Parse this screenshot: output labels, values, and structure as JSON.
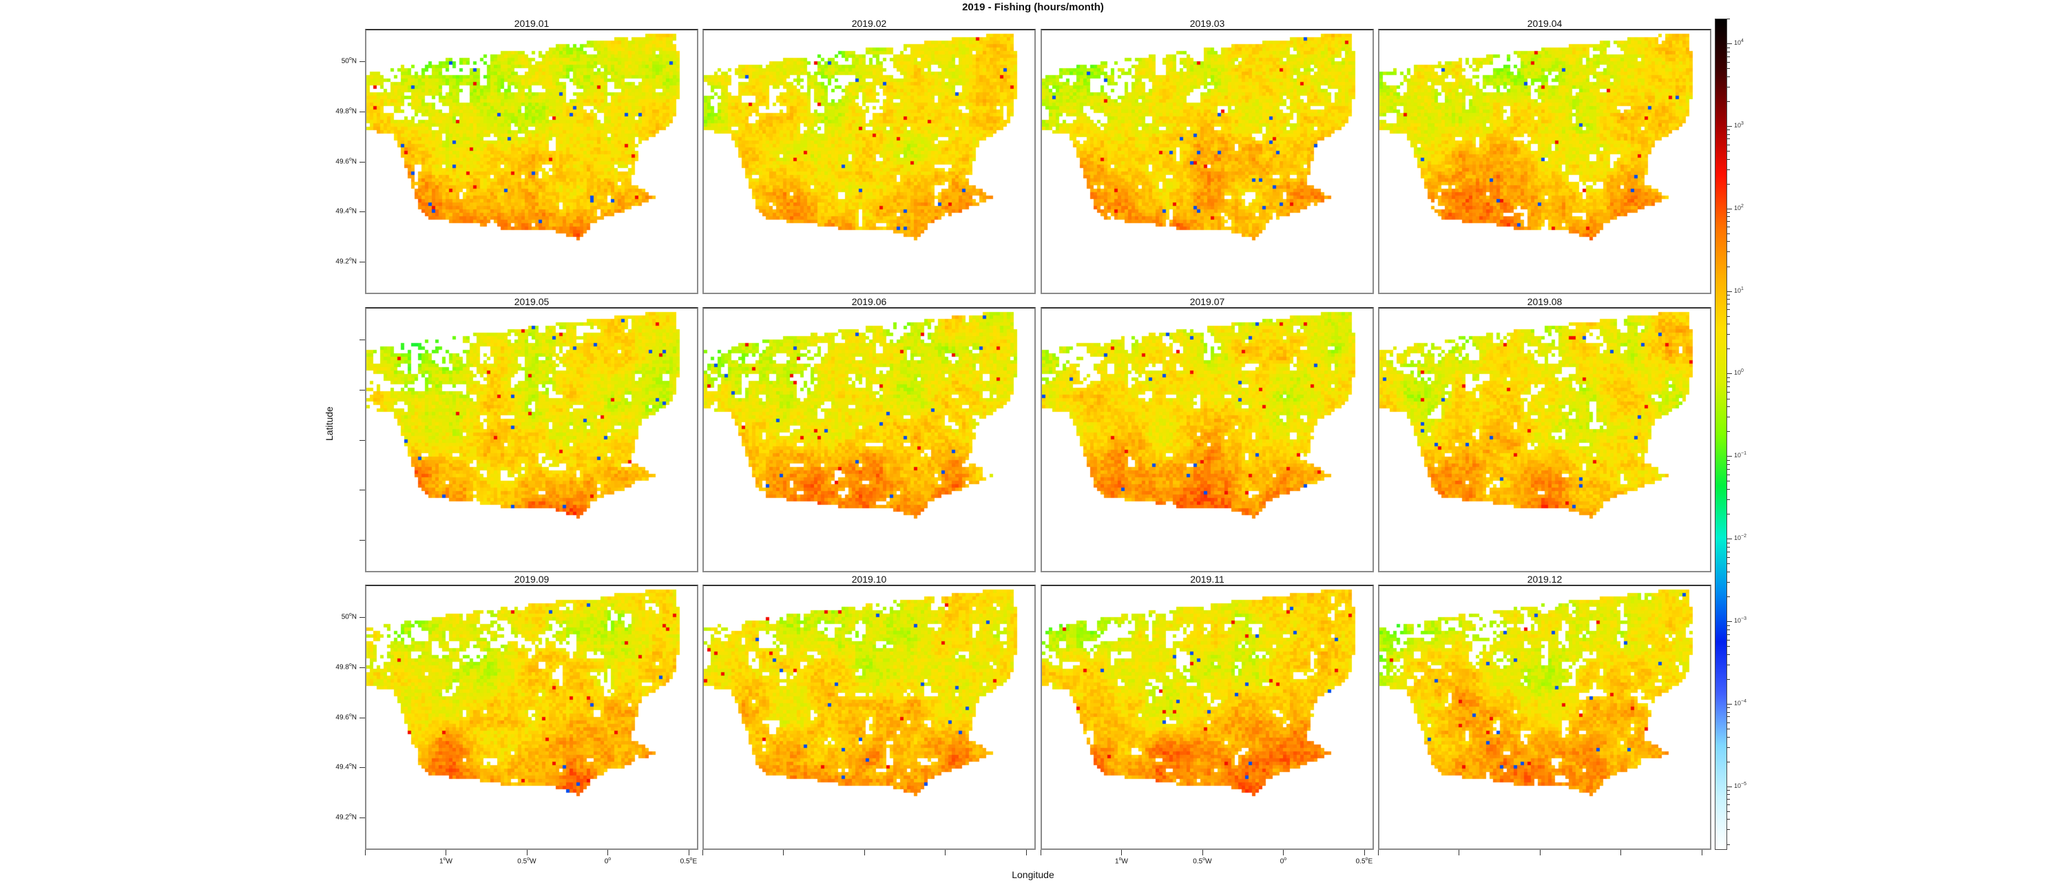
{
  "chart_data": {
    "type": "heatmap",
    "title": "2019 - Fishing (hours/month)",
    "xlabel": "Longitude",
    "ylabel": "Latitude",
    "panels": [
      "2019.01",
      "2019.02",
      "2019.03",
      "2019.04",
      "2019.05",
      "2019.06",
      "2019.07",
      "2019.08",
      "2019.09",
      "2019.10",
      "2019.11",
      "2019.12"
    ],
    "layout": {
      "rows": 3,
      "cols": 4
    },
    "x_ticks": [
      {
        "value": -1.0,
        "label": "1°W",
        "base": "1",
        "sup": "o",
        "suffix": "W"
      },
      {
        "value": -0.5,
        "label": "0.5°W",
        "base": "0.5",
        "sup": "o",
        "suffix": "W"
      },
      {
        "value": 0.0,
        "label": "0°",
        "base": "0",
        "sup": "o",
        "suffix": ""
      },
      {
        "value": 0.5,
        "label": "0.5°E",
        "base": "0.5",
        "sup": "o",
        "suffix": "E"
      }
    ],
    "y_ticks": [
      {
        "value": 50.0,
        "label": "50°N",
        "base": "50",
        "sup": "o",
        "suffix": "N"
      },
      {
        "value": 49.8,
        "label": "49.8°N",
        "base": "49.8",
        "sup": "o",
        "suffix": "N"
      },
      {
        "value": 49.6,
        "label": "49.6°N",
        "base": "49.6",
        "sup": "o",
        "suffix": "N"
      },
      {
        "value": 49.4,
        "label": "49.4°N",
        "base": "49.4",
        "sup": "o",
        "suffix": "N"
      },
      {
        "value": 49.2,
        "label": "49.2°N",
        "base": "49.2",
        "sup": "o",
        "suffix": "N"
      }
    ],
    "xlim": [
      -1.5,
      0.56
    ],
    "ylim": [
      49.07,
      50.13
    ],
    "colorbar": {
      "scale": "log",
      "range": [
        1.7e-06,
        20000
      ],
      "ticks": [
        {
          "exp": "4"
        },
        {
          "exp": "3"
        },
        {
          "exp": "2"
        },
        {
          "exp": "1"
        },
        {
          "exp": "0"
        },
        {
          "exp": "−1"
        },
        {
          "exp": "−2"
        },
        {
          "exp": "−3"
        },
        {
          "exp": "−4"
        },
        {
          "exp": "−5"
        }
      ],
      "tick_base": "10",
      "colors": [
        "#ffffff",
        "#c8f4ff",
        "#80d8ff",
        "#4060ff",
        "#0020f0",
        "#0090f0",
        "#00f0d0",
        "#00f040",
        "#80ff00",
        "#d8f000",
        "#ffe000",
        "#ffb000",
        "#ff7000",
        "#ff1000",
        "#a00000",
        "#400000",
        "#000000"
      ]
    }
  }
}
